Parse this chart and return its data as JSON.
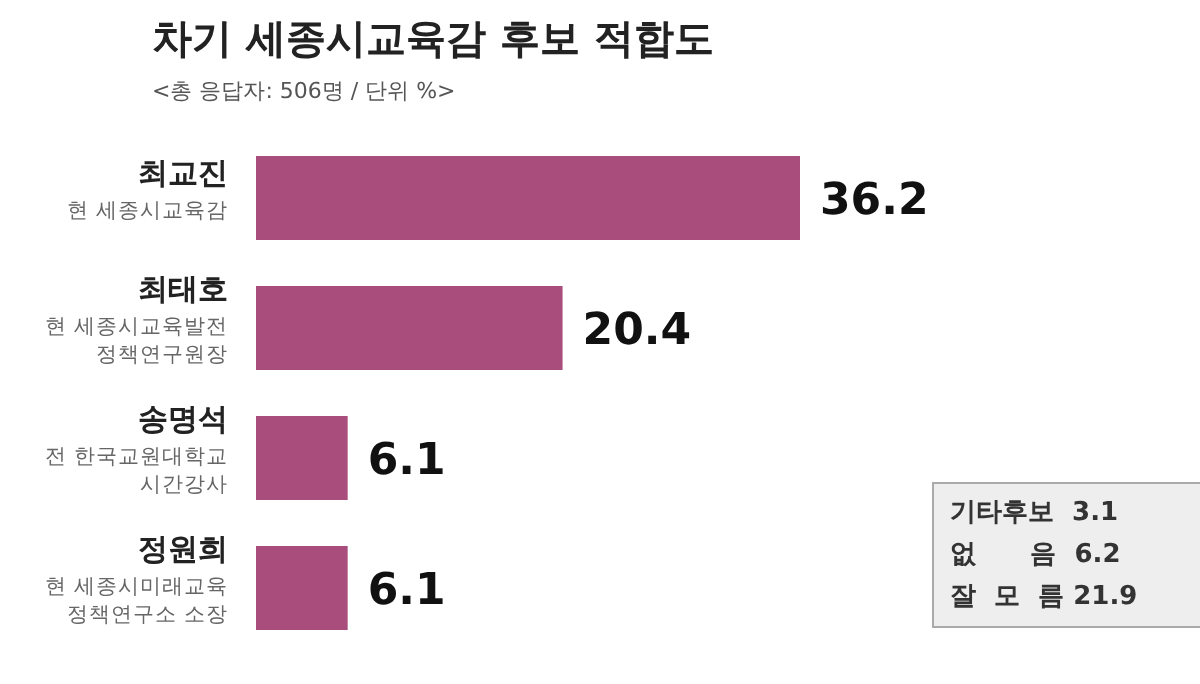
{
  "chart_data": {
    "type": "bar",
    "orientation": "horizontal",
    "title": "차기 세종시교육감 후보 적합도",
    "subtitle": "<총 응답자: 506명 / 단위 %>",
    "categories": [
      "최교진\n현 세종시교육감",
      "최태호\n현 세종시교육발전\n정책연구원장",
      "송명석\n전 한국교원대학교\n시간강사",
      "정원희\n현 세종시미래교육\n정책연구소 소장"
    ],
    "values": [
      36.2,
      20.4,
      6.1,
      6.1
    ],
    "color": "#a84d7c",
    "data_labels": true,
    "annotations": [
      "기타후보  3.1",
      "없      음  6.2",
      "잘  모  름 21.9"
    ]
  }
}
